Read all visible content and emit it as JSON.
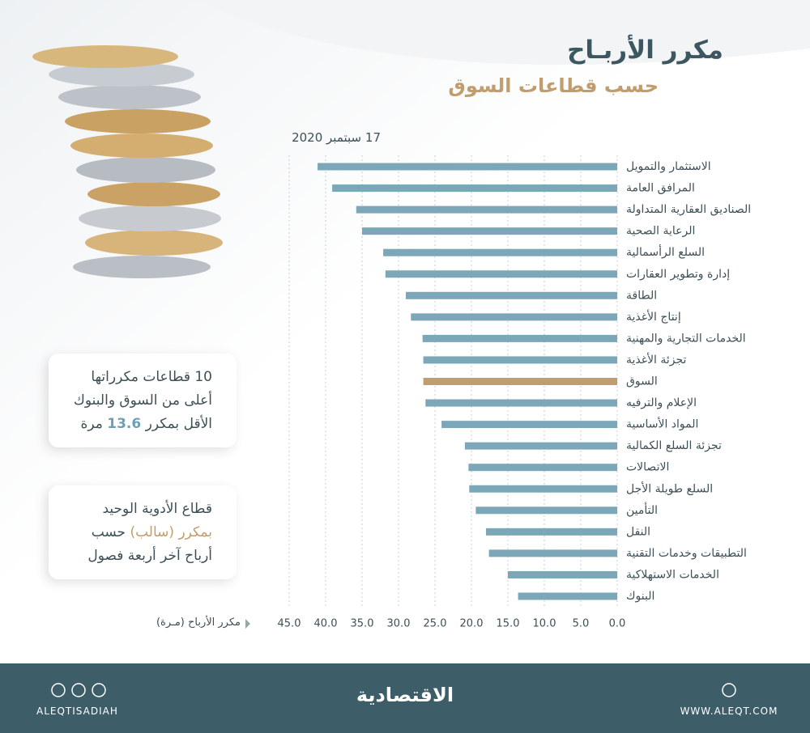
{
  "chart_data": {
    "type": "bar",
    "orientation": "horizontal",
    "title": "مكرر الأربـاح",
    "subtitle": "حسب قطاعات السوق",
    "date": "17 سبتمبر 2020",
    "x_label": "مكرر الأرباح (مـرة)",
    "categories": [
      "الاستثمار والتمويل",
      "المرافق العامة",
      "الصناديق العقارية المتداولة",
      "الرعاية الصحية",
      "السلع الرأسمالية",
      "إدارة وتطوير العقارات",
      "الطاقة",
      "إنتاج الأغذية",
      "الخدمات التجارية والمهنية",
      "تجزئة الأغذية",
      "السوق",
      "الإعلام والترفيه",
      "المواد الأساسية",
      "تجزئة السلع الكمالية",
      "الاتصالات",
      "السلع طويلة الأجل",
      "التأمين",
      "النقل",
      "التطبيقات وخدمات التقنية",
      "الخدمات الاستهلاكية",
      "البنوك"
    ],
    "values": [
      41.1,
      39.1,
      35.8,
      35.0,
      32.1,
      31.8,
      29.0,
      28.3,
      26.7,
      26.6,
      26.6,
      26.3,
      24.1,
      20.9,
      20.4,
      20.3,
      19.4,
      18.0,
      17.6,
      15.0,
      13.6
    ],
    "colors": [
      "#7ba7b8",
      "#7ba7b8",
      "#7ba7b8",
      "#7ba7b8",
      "#7ba7b8",
      "#7ba7b8",
      "#7ba7b8",
      "#7ba7b8",
      "#7ba7b8",
      "#7ba7b8",
      "#c19d6e",
      "#7ba7b8",
      "#7ba7b8",
      "#7ba7b8",
      "#7ba7b8",
      "#7ba7b8",
      "#7ba7b8",
      "#7ba7b8",
      "#7ba7b8",
      "#7ba7b8",
      "#7ba7b8"
    ],
    "xlim": [
      0,
      45
    ],
    "x_reversed": true,
    "grid": true,
    "xticks": [
      {
        "value": 0,
        "label": "0.0"
      },
      {
        "value": 5,
        "label": "5.0"
      },
      {
        "value": 10,
        "label": "10.0"
      },
      {
        "value": 15,
        "label": "15.0"
      },
      {
        "value": 20,
        "label": "20.0"
      },
      {
        "value": 25,
        "label": "25.0"
      },
      {
        "value": 30,
        "label": "30.0"
      },
      {
        "value": 35,
        "label": "35.0"
      },
      {
        "value": 40,
        "label": "40.0"
      },
      {
        "value": 45,
        "label": "45.0"
      }
    ]
  },
  "callouts": [
    {
      "lines": [
        [
          "10 قطاعات مكرراتها"
        ],
        [
          "أعلى من السوق والبنوك"
        ],
        [
          "الأقل بمكرر",
          "13.6",
          "مرة"
        ]
      ]
    },
    {
      "lines": [
        [
          "قطاع الأدوية الوحيد"
        ],
        [
          "بمكرر (سالب)",
          "حسب"
        ],
        [
          "أرباح آخر أربعة فصول"
        ]
      ]
    }
  ],
  "footer": {
    "handle": "ALEQTISADIAH",
    "logo": "الاقتصادية",
    "website": "WWW.ALEQT.COM"
  }
}
